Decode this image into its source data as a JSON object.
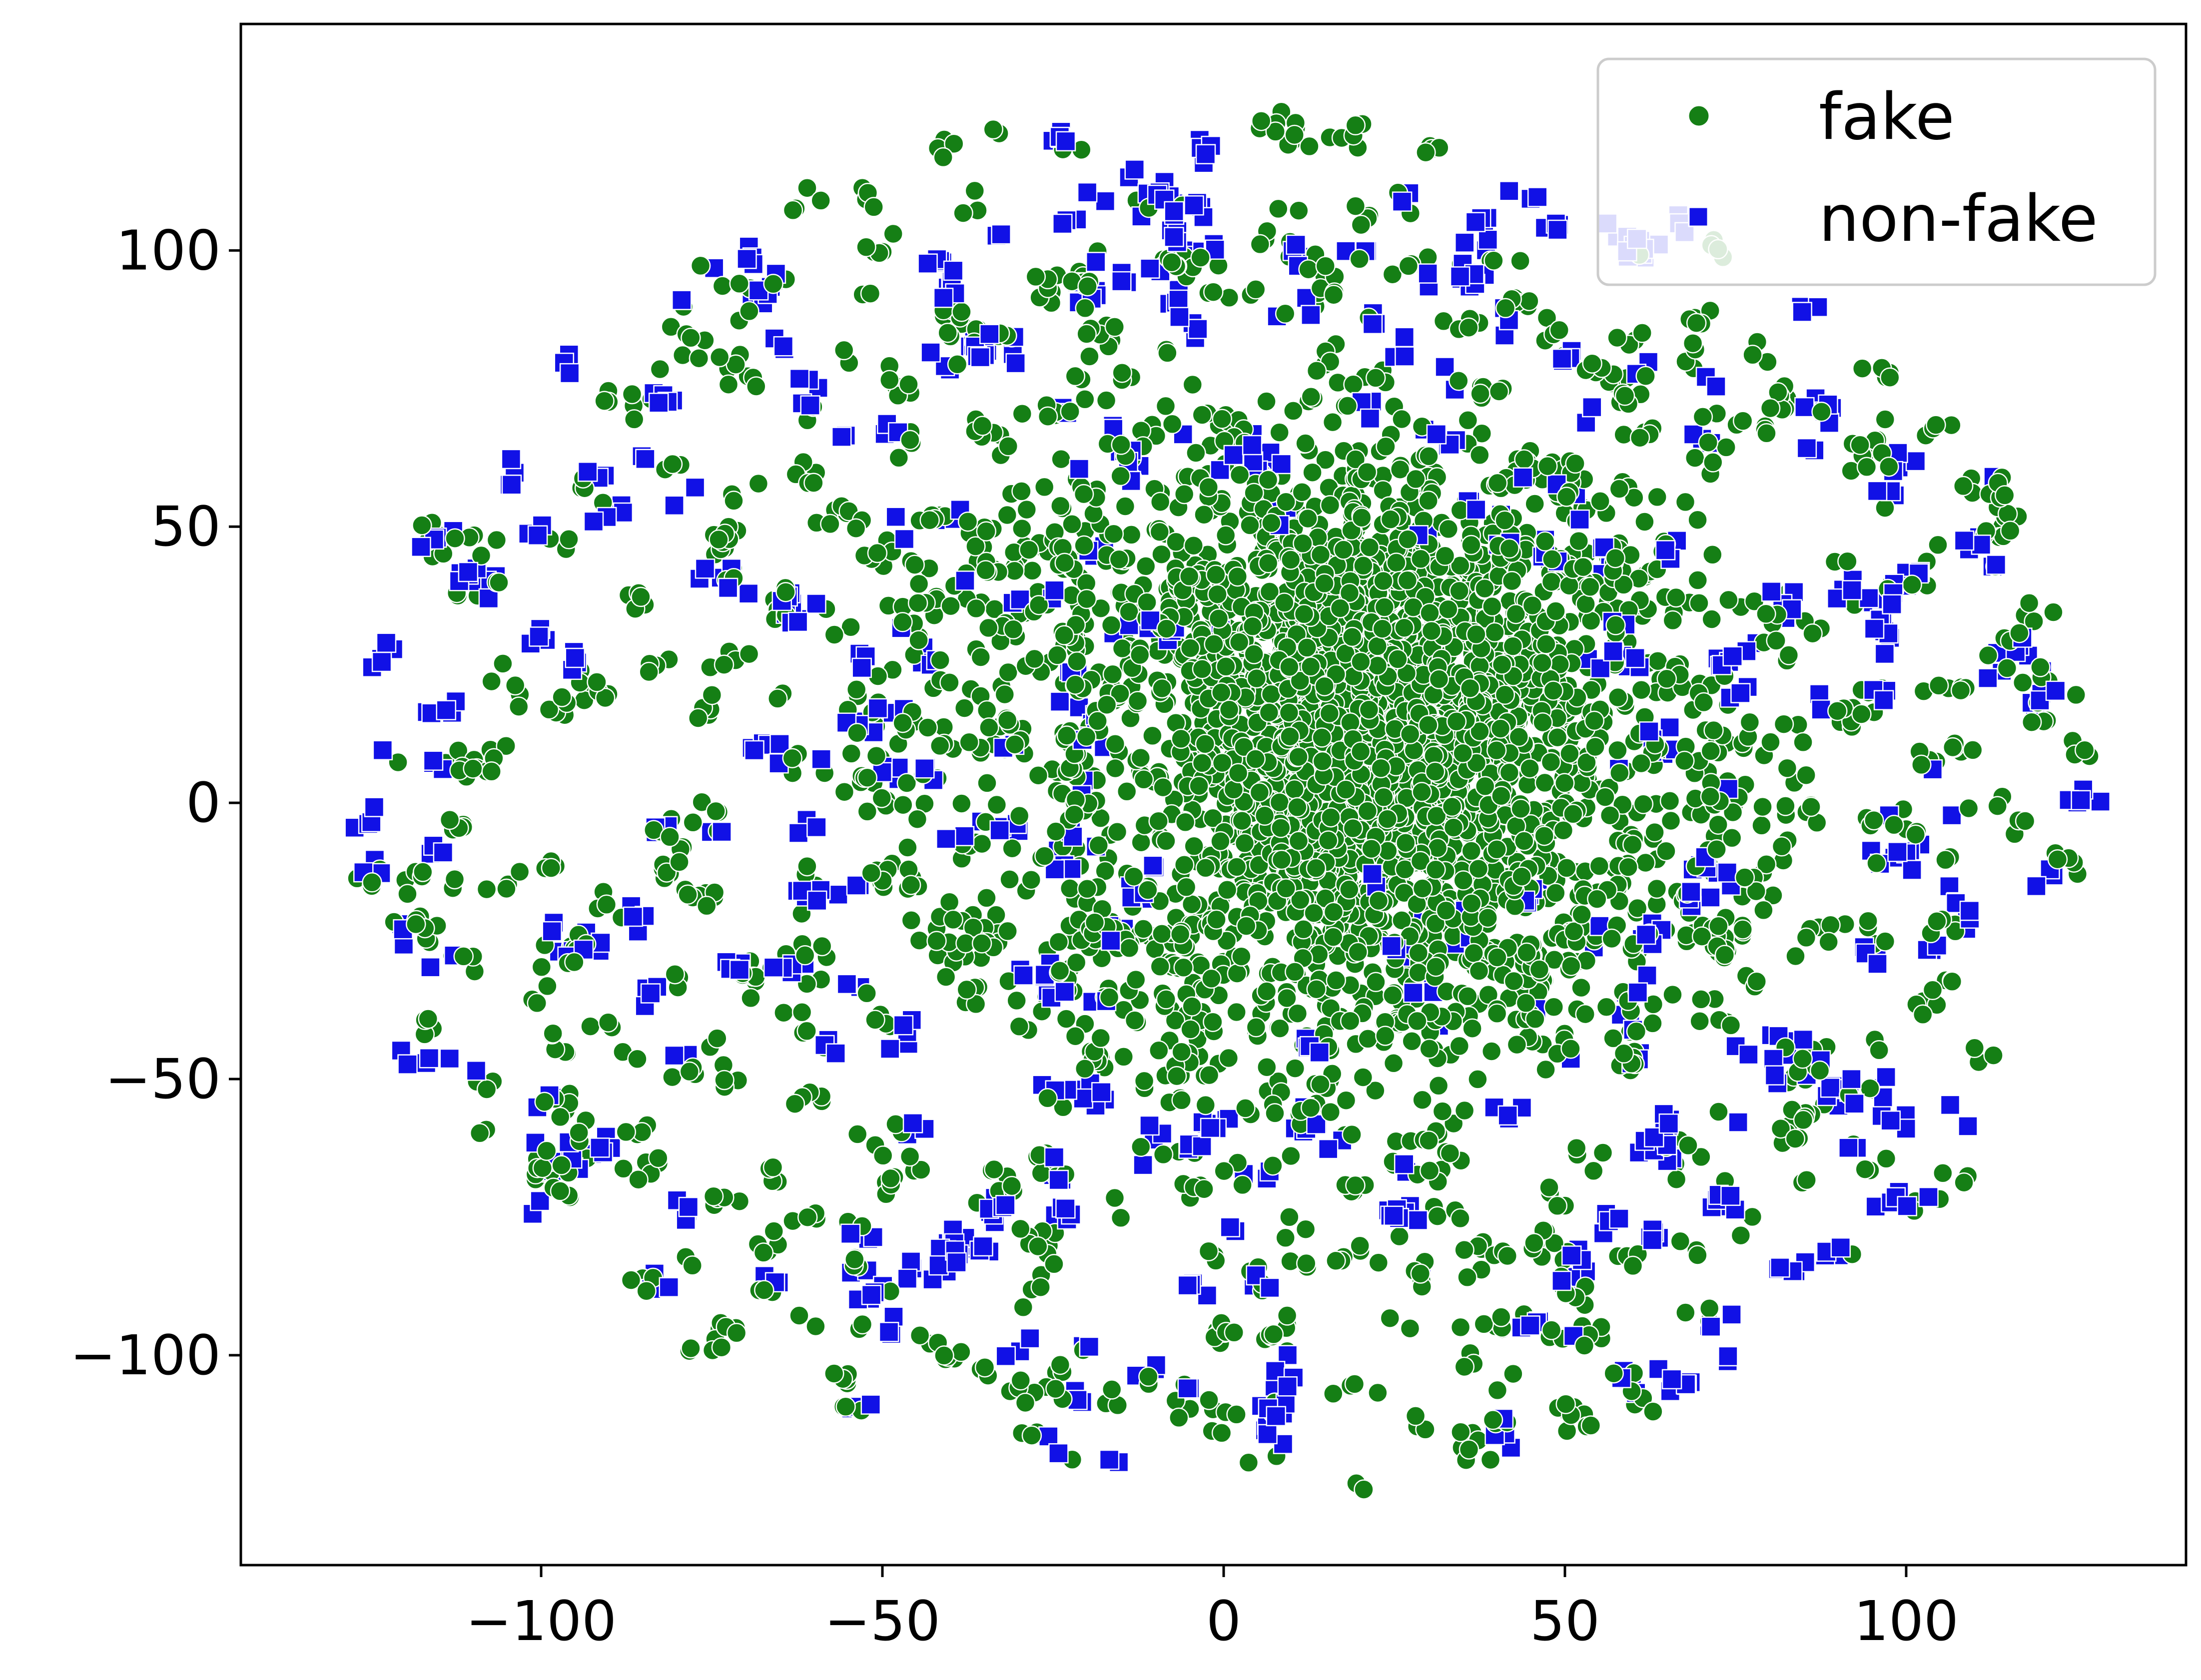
{
  "chart_data": {
    "type": "scatter",
    "title": "",
    "xlabel": "",
    "ylabel": "",
    "xlim": [
      -144,
      141
    ],
    "ylim": [
      -138,
      141
    ],
    "xticks": [
      -100,
      -50,
      0,
      50,
      100
    ],
    "yticks": [
      -100,
      -50,
      0,
      50,
      100
    ],
    "xtick_labels": [
      "−100",
      "−50",
      "0",
      "50",
      "100"
    ],
    "ytick_labels": [
      "−100",
      "−50",
      "0",
      "50",
      "100"
    ],
    "grid": false,
    "legend_position": "top-right",
    "series": [
      {
        "name": "fake",
        "marker": "circle",
        "color": "#157f15",
        "count_estimate": 3500,
        "distribution": "dense core near (18, 15) with sparse t-SNE style clusters spread out to radius ~125"
      },
      {
        "name": "non-fake",
        "marker": "square",
        "color": "#1111e6",
        "count_estimate": 1500,
        "distribution": "small clusters scattered across the disc, mostly outside the dense fake core"
      }
    ]
  }
}
